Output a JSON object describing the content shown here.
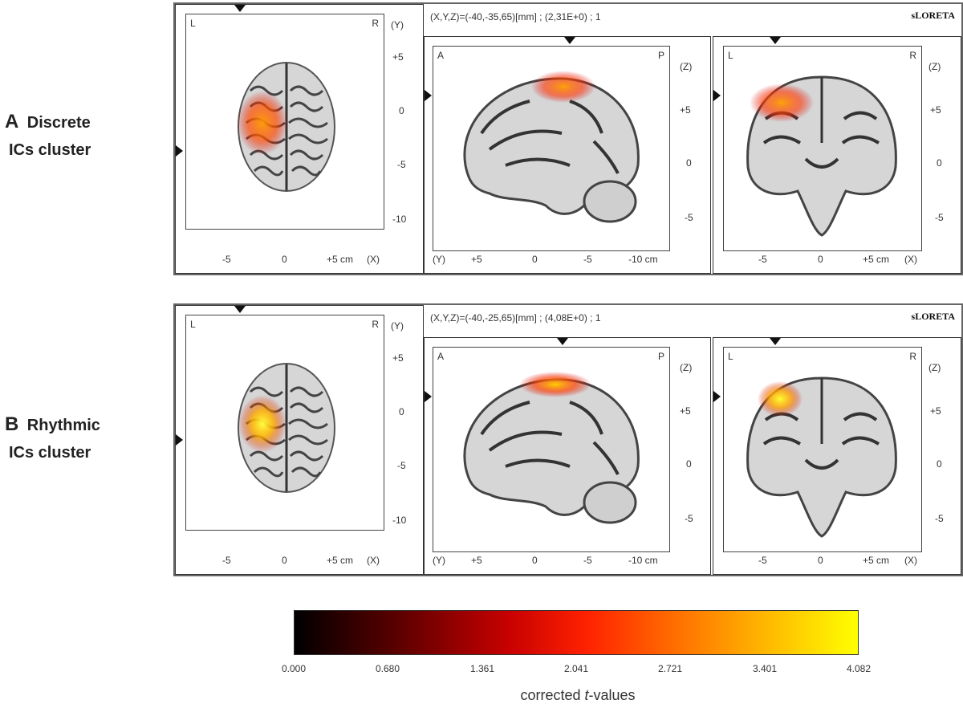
{
  "rows": [
    {
      "letter": "A",
      "label_line1": "Discrete",
      "label_line2": "ICs cluster",
      "coord_readout": "(X,Y,Z)=(-40,-35,65)[mm] ; (2,31E+0) ; 1",
      "method": "sLORETA"
    },
    {
      "letter": "B",
      "label_line1": "Rhythmic",
      "label_line2": "ICs cluster",
      "coord_readout": "(X,Y,Z)=(-40,-25,65)[mm] ; (4,08E+0) ; 1",
      "method": "sLORETA"
    }
  ],
  "axial": {
    "corner_left": "L",
    "corner_right": "R",
    "axis_y_label": "(Y)",
    "y_ticks": [
      "+5",
      "0",
      "-5",
      "-10"
    ],
    "x_ticks": [
      "-5",
      "0",
      "+5 cm"
    ],
    "axis_x_label": "(X)"
  },
  "sagittal": {
    "corner_left": "A",
    "corner_right": "P",
    "axis_z_label": "(Z)",
    "z_ticks": [
      "+5",
      "0",
      "-5"
    ],
    "axis_y_label": "(Y)",
    "y_ticks": [
      "+5",
      "0",
      "-5",
      "-10 cm"
    ]
  },
  "coronal": {
    "corner_left": "L",
    "corner_right": "R",
    "axis_z_label": "(Z)",
    "z_ticks": [
      "+5",
      "0",
      "-5"
    ],
    "x_ticks": [
      "-5",
      "0",
      "+5 cm"
    ],
    "axis_x_label": "(X)"
  },
  "colorbar": {
    "ticks": [
      "0.000",
      "0.680",
      "1.361",
      "2.041",
      "2.721",
      "3.401",
      "4.082"
    ],
    "title_prefix": "corrected ",
    "title_italic": "t",
    "title_suffix": "-values",
    "min": 0.0,
    "max": 4.082,
    "colors": [
      "#000000",
      "#5a0000",
      "#c80000",
      "#ff2200",
      "#ff7000",
      "#ffb000",
      "#ffff00"
    ]
  }
}
